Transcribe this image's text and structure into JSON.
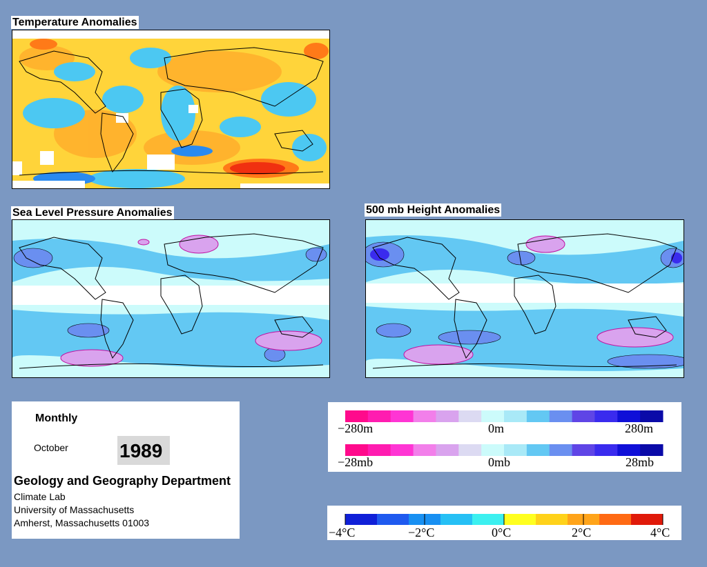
{
  "maps": {
    "temperature": {
      "title": "Temperature Anomalies"
    },
    "pressure": {
      "title": "Sea Level Pressure Anomalies"
    },
    "height": {
      "title": "500 mb Height Anomalies"
    }
  },
  "info": {
    "period": "Monthly",
    "month": "October",
    "year": "1989",
    "department": "Geology and Geography Department",
    "lab": "Climate Lab",
    "university": "University of Massachusetts",
    "address": "Amherst, Massachusetts 01003"
  },
  "height_scale": {
    "min_label": "−280m",
    "mid_label": "0m",
    "max_label": "280m",
    "colors": [
      "#ff0a8c",
      "#ff1cb0",
      "#ff35d4",
      "#f27fea",
      "#d9a3ee",
      "#dcdaf2",
      "#ccfbfb",
      "#a9e9f7",
      "#63c8f3",
      "#6a8ff0",
      "#5f45e6",
      "#3a2bee",
      "#1010d8",
      "#0a0aa8"
    ]
  },
  "pressure_scale": {
    "min_label": "−28mb",
    "mid_label": "0mb",
    "max_label": "28mb",
    "colors": [
      "#ff0a8c",
      "#ff1cb0",
      "#ff35d4",
      "#f27fea",
      "#d9a3ee",
      "#dcdaf2",
      "#ccfbfb",
      "#a9e9f7",
      "#63c8f3",
      "#6a8ff0",
      "#5f45e6",
      "#3a2bee",
      "#1010d8",
      "#0a0aa8"
    ]
  },
  "temperature_scale": {
    "labels": [
      "−4°C",
      "−2°C",
      "0°C",
      "2°C",
      "4°C"
    ],
    "colors": [
      "#1020d8",
      "#1f5aef",
      "#1890f2",
      "#26c0f5",
      "#3cf0f0",
      "#ffff20",
      "#ffd21a",
      "#ffa41a",
      "#ff6a14",
      "#e01a0a"
    ]
  }
}
